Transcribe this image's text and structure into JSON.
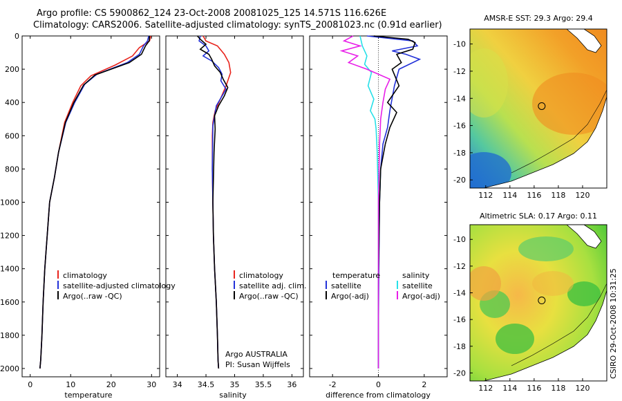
{
  "header": {
    "line1": "Argo profile: CS 5900862_124 23-Oct-2008 20081025_125 14.571S 116.626E",
    "line2": "Climatology: CARS2006. Satellite-adjusted climatology: synTS_20081023.nc (0.91d earlier)"
  },
  "footer": {
    "stamp": "CSIRO 29-Oct-2008 10:31:25"
  },
  "colors": {
    "red": "#e8231c",
    "blue": "#2130d8",
    "black": "#000000",
    "cyan": "#25e0e8",
    "magenta": "#e81ee8"
  },
  "chart_data": [
    {
      "type": "line",
      "id": "temperature",
      "xlabel": "temperature",
      "ylabel": "",
      "xlim": [
        -2,
        32
      ],
      "ylim": [
        2050,
        0
      ],
      "xticks": [
        0,
        10,
        20,
        30
      ],
      "yticks": [
        0,
        200,
        400,
        600,
        800,
        1000,
        1200,
        1400,
        1600,
        1800,
        2000
      ],
      "legend": [
        "climatology",
        "satellite-adjusted climatology",
        "Argo(..raw -QC)"
      ],
      "series": [
        {
          "name": "climatology",
          "color": "red",
          "x": [
            29.8,
            29.5,
            27.0,
            25.3,
            21.0,
            15.0,
            12.5,
            10.5,
            8.5,
            7.0,
            6.0,
            4.8,
            4.2,
            3.6,
            3.2,
            2.9,
            2.6,
            2.4
          ],
          "y": [
            0,
            30,
            70,
            120,
            175,
            240,
            300,
            400,
            520,
            700,
            850,
            1000,
            1200,
            1400,
            1600,
            1800,
            1950,
            2000
          ]
        },
        {
          "name": "satellite-adjusted climatology",
          "color": "blue",
          "x": [
            29.3,
            29.0,
            28.0,
            27.0,
            24.0,
            16.5,
            13.5,
            11.0,
            8.8,
            7.0,
            6.0,
            4.8,
            4.2,
            3.6,
            3.2,
            2.9,
            2.6,
            2.4
          ],
          "y": [
            0,
            30,
            60,
            110,
            160,
            230,
            290,
            400,
            520,
            700,
            850,
            1000,
            1200,
            1400,
            1600,
            1800,
            1950,
            2000
          ]
        },
        {
          "name": "Argo(..raw -QC)",
          "color": "black",
          "x": [
            29.5,
            29.4,
            28.5,
            27.5,
            24.5,
            16.0,
            13.2,
            10.8,
            8.7,
            7.0,
            6.0,
            4.8,
            4.2,
            3.6,
            3.2,
            2.9,
            2.6,
            2.4
          ],
          "y": [
            0,
            30,
            60,
            110,
            160,
            235,
            295,
            400,
            520,
            700,
            850,
            1000,
            1200,
            1400,
            1600,
            1800,
            1950,
            2000
          ]
        }
      ]
    },
    {
      "type": "line",
      "id": "salinity",
      "xlabel": "salinity",
      "xlim": [
        33.8,
        36.2
      ],
      "ylim": [
        2050,
        0
      ],
      "xticks": [
        34,
        34.5,
        35,
        35.5,
        36
      ],
      "legend": [
        "climatology",
        "satellite adj. clim.",
        "Argo(..raw -QC)"
      ],
      "annotation": [
        "Argo AUSTRALIA",
        "PI: Susan Wijffels"
      ],
      "series": [
        {
          "name": "climatology",
          "color": "red",
          "x": [
            34.45,
            34.5,
            34.7,
            34.82,
            34.9,
            34.93,
            34.85,
            34.75,
            34.66,
            34.62,
            34.61,
            34.61,
            34.62,
            34.63,
            34.65,
            34.68,
            34.7,
            34.71,
            34.72
          ],
          "y": [
            0,
            30,
            60,
            110,
            160,
            220,
            300,
            380,
            450,
            520,
            600,
            800,
            1000,
            1200,
            1400,
            1600,
            1800,
            1950,
            2000
          ]
        },
        {
          "name": "satellite adj. clim.",
          "color": "blue",
          "x": [
            34.4,
            34.38,
            34.5,
            34.55,
            34.45,
            34.6,
            34.72,
            34.78,
            34.76,
            34.85,
            34.68,
            34.62,
            34.61,
            34.62,
            34.63,
            34.65,
            34.68,
            34.7,
            34.71,
            34.72
          ],
          "y": [
            0,
            30,
            60,
            90,
            120,
            150,
            190,
            230,
            270,
            320,
            420,
            540,
            800,
            1000,
            1200,
            1400,
            1600,
            1800,
            1950,
            2000
          ]
        },
        {
          "name": "Argo(..raw -QC)",
          "color": "black",
          "x": [
            34.35,
            34.4,
            34.5,
            34.4,
            34.55,
            34.6,
            34.65,
            34.75,
            34.8,
            34.88,
            34.82,
            34.72,
            34.65,
            34.66,
            34.64,
            34.62,
            34.63,
            34.65,
            34.68,
            34.7,
            34.71,
            34.72
          ],
          "y": [
            0,
            20,
            50,
            80,
            110,
            140,
            180,
            220,
            260,
            310,
            360,
            420,
            480,
            560,
            700,
            1000,
            1200,
            1400,
            1600,
            1800,
            1950,
            2000
          ]
        }
      ]
    },
    {
      "type": "line",
      "id": "difference",
      "xlabel": "difference from climatology",
      "xlim": [
        -3,
        3
      ],
      "ylim": [
        2050,
        0
      ],
      "xticks": [
        -2,
        0,
        2
      ],
      "legend_titles": [
        "temperature",
        "salinity"
      ],
      "legend_left": [
        "satellite",
        "Argo(-adj)"
      ],
      "legend_right": [
        "satellite",
        "Argo(-adj)"
      ],
      "series": [
        {
          "name": "temperature satellite",
          "color": "blue",
          "x": [
            -0.5,
            1.5,
            1.7,
            0.6,
            1.2,
            1.8,
            0.9,
            0.7,
            0.5,
            0.4,
            0.2,
            0.1,
            0.05,
            0.02,
            0.0,
            0.0
          ],
          "y": [
            0,
            30,
            60,
            90,
            110,
            140,
            200,
            300,
            450,
            550,
            650,
            800,
            1000,
            1400,
            1800,
            2000
          ]
        },
        {
          "name": "temperature Argo(-adj)",
          "color": "black",
          "x": [
            -0.2,
            1.3,
            1.6,
            1.5,
            0.8,
            1.0,
            0.6,
            0.9,
            0.4,
            0.8,
            0.5,
            0.3,
            0.1,
            0.05,
            0.0,
            0.0
          ],
          "y": [
            0,
            20,
            40,
            80,
            110,
            160,
            200,
            300,
            400,
            460,
            550,
            650,
            800,
            1000,
            1500,
            2000
          ]
        },
        {
          "name": "salinity satellite",
          "color": "cyan",
          "x": [
            -0.8,
            -0.7,
            -0.5,
            -0.6,
            -0.3,
            -0.45,
            -0.2,
            -0.35,
            -0.15,
            -0.1,
            -0.05,
            0.0,
            0.0
          ],
          "y": [
            0,
            60,
            120,
            170,
            220,
            300,
            380,
            450,
            500,
            560,
            700,
            1000,
            2000
          ]
        },
        {
          "name": "salinity Argo(-adj)",
          "color": "magenta",
          "x": [
            -1.1,
            -1.5,
            -0.8,
            -1.6,
            -0.9,
            -1.3,
            -0.5,
            0.5,
            0.3,
            0.2,
            0.1,
            0.05,
            0.0,
            0.0
          ],
          "y": [
            0,
            30,
            60,
            90,
            120,
            160,
            200,
            260,
            320,
            400,
            500,
            650,
            1000,
            2000
          ]
        }
      ]
    },
    {
      "type": "heatmap",
      "id": "sst-map",
      "title": "AMSR-E SST: 29.3 Argo: 29.4",
      "xlim": [
        110.7,
        122
      ],
      "ylim": [
        -20.6,
        -8.9
      ],
      "xticks": [
        112,
        114,
        116,
        118,
        120
      ],
      "yticks": [
        -10,
        -12,
        -14,
        -16,
        -18,
        -20
      ],
      "float_position": [
        116.626,
        -14.571
      ]
    },
    {
      "type": "heatmap",
      "id": "sla-map",
      "title": "Altimetric SLA: 0.17 Argo: 0.11",
      "xlim": [
        110.7,
        122
      ],
      "ylim": [
        -20.6,
        -8.9
      ],
      "xticks": [
        112,
        114,
        116,
        118,
        120
      ],
      "yticks": [
        -10,
        -12,
        -14,
        -16,
        -18,
        -20
      ],
      "float_position": [
        116.626,
        -14.571
      ]
    }
  ]
}
